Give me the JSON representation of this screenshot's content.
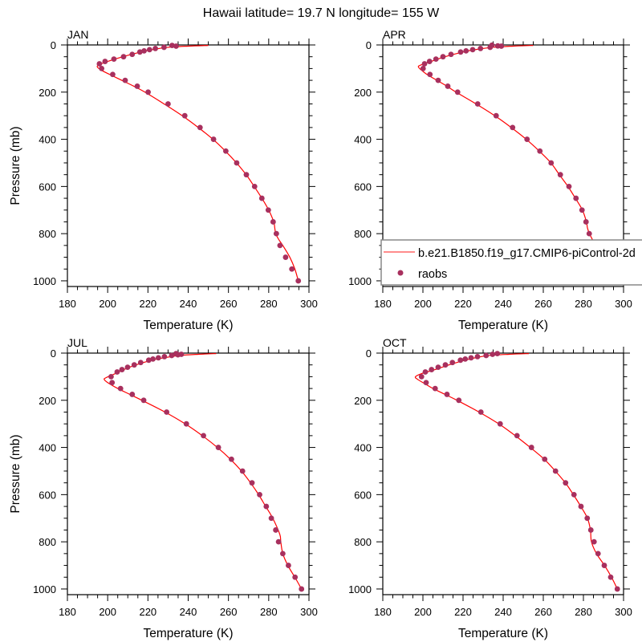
{
  "title": "Hawaii  latitude= 19.7 N longitude= 155 W",
  "legend": {
    "placement": "lower-right of APR panel",
    "entries": [
      {
        "label": "b.e21.B1850.f19_g17.CMIP6-piControl-2d",
        "kind": "line",
        "color": "#ff0000"
      },
      {
        "label": "raobs",
        "kind": "marker",
        "color": "#a8305e"
      }
    ]
  },
  "chart_data": [
    {
      "type": "line",
      "title": "JAN",
      "xlabel": "Temperature (K)",
      "ylabel": "Pressure (mb)",
      "xlim": [
        180,
        300
      ],
      "ylim": [
        0,
        1024
      ],
      "y_reversed": true,
      "xticks": [
        180,
        200,
        220,
        240,
        260,
        280,
        300
      ],
      "yticks": [
        0,
        200,
        400,
        600,
        800,
        1000
      ],
      "model": [
        [
          250,
          2
        ],
        [
          240,
          5
        ],
        [
          230,
          10
        ],
        [
          222,
          20
        ],
        [
          216.5,
          30
        ],
        [
          207.5,
          50
        ],
        [
          200,
          70
        ],
        [
          195.5,
          85
        ],
        [
          195,
          95
        ],
        [
          197.5,
          110
        ],
        [
          201,
          125
        ],
        [
          207,
          150
        ],
        [
          213,
          175
        ],
        [
          218.5,
          200
        ],
        [
          228,
          250
        ],
        [
          237,
          300
        ],
        [
          245,
          350
        ],
        [
          252.3,
          400
        ],
        [
          258.5,
          450
        ],
        [
          264,
          500
        ],
        [
          268.8,
          550
        ],
        [
          272.8,
          600
        ],
        [
          276.6,
          650
        ],
        [
          280,
          700
        ],
        [
          282.5,
          750
        ],
        [
          283,
          775
        ],
        [
          283.5,
          800
        ],
        [
          285,
          825
        ],
        [
          287,
          850
        ],
        [
          290.5,
          900
        ],
        [
          293,
          950
        ],
        [
          294.7,
          1000
        ]
      ],
      "obs": [
        [
          232,
          2
        ],
        [
          234,
          5
        ],
        [
          228,
          10
        ],
        [
          223.7,
          15
        ],
        [
          220.8,
          20
        ],
        [
          218.1,
          25
        ],
        [
          216,
          30
        ],
        [
          212.2,
          40
        ],
        [
          207.9,
          50
        ],
        [
          203.1,
          60
        ],
        [
          198.7,
          70
        ],
        [
          195.9,
          80
        ],
        [
          197,
          100
        ],
        [
          202.5,
          125
        ],
        [
          208.7,
          150
        ],
        [
          214.7,
          175
        ],
        [
          220.1,
          200
        ],
        [
          230,
          250
        ],
        [
          238.3,
          300
        ],
        [
          245.9,
          350
        ],
        [
          252.6,
          400
        ],
        [
          258.7,
          450
        ],
        [
          264.1,
          500
        ],
        [
          268.9,
          550
        ],
        [
          273,
          600
        ],
        [
          276.6,
          650
        ],
        [
          279.8,
          700
        ],
        [
          282.2,
          750
        ],
        [
          283.8,
          800
        ],
        [
          285.6,
          850
        ],
        [
          288.4,
          900
        ],
        [
          291.5,
          950
        ],
        [
          294.7,
          1000
        ]
      ]
    },
    {
      "type": "line",
      "title": "APR",
      "xlabel": "Temperature (K)",
      "ylabel": "",
      "xlim": [
        180,
        300
      ],
      "ylim": [
        0,
        1024
      ],
      "y_reversed": true,
      "xticks": [
        180,
        200,
        220,
        240,
        260,
        280,
        300
      ],
      "yticks": [
        0,
        200,
        400,
        600,
        800,
        1000
      ],
      "model": [
        [
          255,
          2
        ],
        [
          245,
          5
        ],
        [
          235,
          10
        ],
        [
          226,
          20
        ],
        [
          220,
          30
        ],
        [
          211,
          50
        ],
        [
          204,
          70
        ],
        [
          199,
          85
        ],
        [
          197.7,
          92
        ],
        [
          199,
          105
        ],
        [
          202,
          125
        ],
        [
          207,
          150
        ],
        [
          212,
          175
        ],
        [
          216.5,
          200
        ],
        [
          226.5,
          250
        ],
        [
          235.8,
          300
        ],
        [
          244,
          350
        ],
        [
          251.5,
          400
        ],
        [
          258,
          450
        ],
        [
          263.8,
          500
        ],
        [
          268,
          550
        ],
        [
          272.3,
          600
        ],
        [
          276,
          650
        ],
        [
          279.5,
          700
        ],
        [
          281.5,
          750
        ],
        [
          282,
          775
        ],
        [
          283,
          800
        ],
        [
          286,
          850
        ],
        [
          289,
          900
        ],
        [
          292,
          950
        ],
        [
          294.7,
          1000
        ]
      ],
      "obs": [
        [
          234.4,
          1
        ],
        [
          237.3,
          4
        ],
        [
          239.1,
          5
        ],
        [
          233.5,
          10
        ],
        [
          228.7,
          15
        ],
        [
          224.8,
          20
        ],
        [
          221.5,
          25
        ],
        [
          218.8,
          30
        ],
        [
          214,
          40
        ],
        [
          210,
          50
        ],
        [
          206.5,
          60
        ],
        [
          203.3,
          70
        ],
        [
          200.8,
          80
        ],
        [
          200.1,
          100
        ],
        [
          203.5,
          125
        ],
        [
          207.6,
          150
        ],
        [
          212.4,
          175
        ],
        [
          217.3,
          200
        ],
        [
          227.3,
          250
        ],
        [
          236.5,
          300
        ],
        [
          244.7,
          350
        ],
        [
          251.9,
          400
        ],
        [
          258.3,
          450
        ],
        [
          263.9,
          500
        ],
        [
          268.5,
          550
        ],
        [
          272.8,
          600
        ],
        [
          276.3,
          650
        ],
        [
          279.3,
          700
        ],
        [
          281.3,
          750
        ],
        [
          282.9,
          800
        ],
        [
          285.1,
          850
        ],
        [
          288,
          900
        ],
        [
          291.2,
          950
        ],
        [
          294.7,
          1000
        ]
      ]
    },
    {
      "type": "line",
      "title": "JUL",
      "xlabel": "Temperature (K)",
      "ylabel": "Pressure (mb)",
      "xlim": [
        180,
        300
      ],
      "ylim": [
        0,
        1024
      ],
      "y_reversed": true,
      "xticks": [
        180,
        200,
        220,
        240,
        260,
        280,
        300
      ],
      "yticks": [
        0,
        200,
        400,
        600,
        800,
        1000
      ],
      "model": [
        [
          253.9,
          2
        ],
        [
          245,
          5
        ],
        [
          236,
          10
        ],
        [
          228,
          20
        ],
        [
          222,
          30
        ],
        [
          214,
          50
        ],
        [
          208,
          70
        ],
        [
          203,
          90
        ],
        [
          199,
          105
        ],
        [
          198.3,
          112
        ],
        [
          200,
          125
        ],
        [
          205,
          150
        ],
        [
          211,
          175
        ],
        [
          217,
          200
        ],
        [
          228.5,
          250
        ],
        [
          238.5,
          300
        ],
        [
          247,
          350
        ],
        [
          254.5,
          400
        ],
        [
          261,
          450
        ],
        [
          266.5,
          500
        ],
        [
          271,
          550
        ],
        [
          275,
          600
        ],
        [
          278.5,
          650
        ],
        [
          282,
          700
        ],
        [
          285.5,
          768
        ],
        [
          286,
          800
        ],
        [
          287,
          850
        ],
        [
          289.5,
          900
        ],
        [
          293,
          950
        ],
        [
          296.3,
          1000
        ]
      ],
      "obs": [
        [
          234,
          2
        ],
        [
          236.6,
          5
        ],
        [
          234.9,
          7
        ],
        [
          231.8,
          10
        ],
        [
          228.2,
          15
        ],
        [
          225.2,
          20
        ],
        [
          222.5,
          25
        ],
        [
          220.4,
          30
        ],
        [
          216.4,
          40
        ],
        [
          213.2,
          50
        ],
        [
          209.9,
          60
        ],
        [
          207.1,
          70
        ],
        [
          204.7,
          80
        ],
        [
          201.7,
          100
        ],
        [
          202.2,
          125
        ],
        [
          206.4,
          150
        ],
        [
          212.2,
          175
        ],
        [
          217.9,
          200
        ],
        [
          229.3,
          250
        ],
        [
          239.1,
          300
        ],
        [
          247.6,
          350
        ],
        [
          255,
          400
        ],
        [
          261.5,
          450
        ],
        [
          267,
          500
        ],
        [
          271.7,
          550
        ],
        [
          275.5,
          600
        ],
        [
          278.8,
          650
        ],
        [
          281.3,
          700
        ],
        [
          283.5,
          750
        ],
        [
          284.9,
          800
        ],
        [
          287,
          850
        ],
        [
          289.8,
          900
        ],
        [
          293.1,
          950
        ],
        [
          296.3,
          1000
        ]
      ]
    },
    {
      "type": "line",
      "title": "OCT",
      "xlabel": "Temperature (K)",
      "ylabel": "",
      "xlim": [
        180,
        300
      ],
      "ylim": [
        0,
        1024
      ],
      "y_reversed": true,
      "xticks": [
        180,
        200,
        220,
        240,
        260,
        280,
        300
      ],
      "yticks": [
        0,
        200,
        400,
        600,
        800,
        1000
      ],
      "model": [
        [
          252.8,
          2
        ],
        [
          243,
          5
        ],
        [
          233,
          10
        ],
        [
          226,
          20
        ],
        [
          221,
          30
        ],
        [
          213,
          50
        ],
        [
          206,
          70
        ],
        [
          200,
          85
        ],
        [
          196.3,
          100
        ],
        [
          197.5,
          112
        ],
        [
          201,
          130
        ],
        [
          205,
          150
        ],
        [
          211,
          175
        ],
        [
          217,
          200
        ],
        [
          228,
          250
        ],
        [
          237.8,
          300
        ],
        [
          246,
          350
        ],
        [
          253.5,
          400
        ],
        [
          260.5,
          450
        ],
        [
          266,
          500
        ],
        [
          271,
          550
        ],
        [
          275,
          600
        ],
        [
          278.7,
          650
        ],
        [
          282,
          700
        ],
        [
          283.5,
          750
        ],
        [
          284,
          800
        ],
        [
          286.5,
          850
        ],
        [
          290.5,
          900
        ],
        [
          294,
          950
        ],
        [
          296.9,
          1000
        ]
      ],
      "obs": [
        [
          237.1,
          2
        ],
        [
          234.7,
          5
        ],
        [
          231.5,
          10
        ],
        [
          227.2,
          15
        ],
        [
          224,
          20
        ],
        [
          221.1,
          25
        ],
        [
          218.7,
          30
        ],
        [
          214.7,
          40
        ],
        [
          211.2,
          50
        ],
        [
          207.6,
          60
        ],
        [
          204.3,
          70
        ],
        [
          201.2,
          80
        ],
        [
          199.3,
          100
        ],
        [
          201.6,
          125
        ],
        [
          206.1,
          150
        ],
        [
          212,
          175
        ],
        [
          217.9,
          200
        ],
        [
          228.9,
          250
        ],
        [
          238.5,
          300
        ],
        [
          246.9,
          350
        ],
        [
          254.1,
          400
        ],
        [
          260.7,
          450
        ],
        [
          266.1,
          500
        ],
        [
          271.1,
          550
        ],
        [
          275.3,
          600
        ],
        [
          278.8,
          650
        ],
        [
          281.9,
          700
        ],
        [
          283.7,
          750
        ],
        [
          285.3,
          800
        ],
        [
          287.3,
          850
        ],
        [
          290.4,
          900
        ],
        [
          293.6,
          950
        ],
        [
          296.9,
          1000
        ]
      ]
    }
  ]
}
